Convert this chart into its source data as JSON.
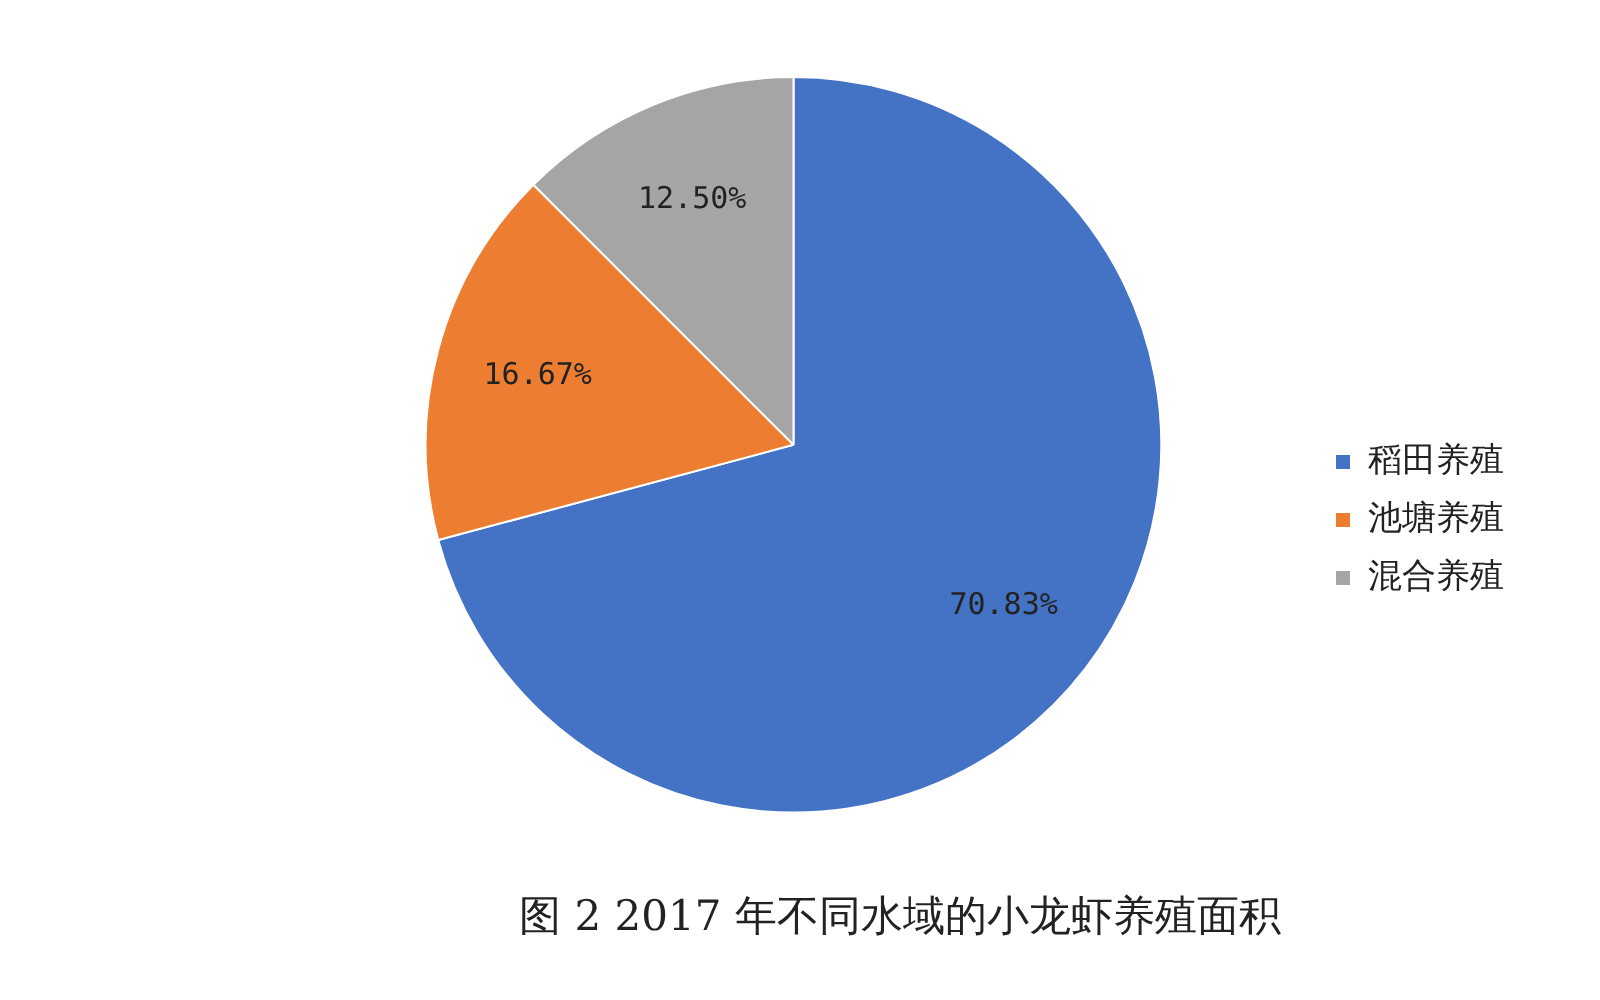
{
  "chart_data": {
    "type": "pie",
    "title": "图 2 2017 年不同水域的小龙虾养殖面积",
    "categories": [
      "稻田养殖",
      "池塘养殖",
      "混合养殖"
    ],
    "values": [
      70.83,
      16.67,
      12.5
    ],
    "value_labels": [
      "70.83%",
      "16.67%",
      "12.50%"
    ],
    "colors": [
      "#4472c4",
      "#ed7d31",
      "#a5a5a5"
    ],
    "legend": "right"
  }
}
